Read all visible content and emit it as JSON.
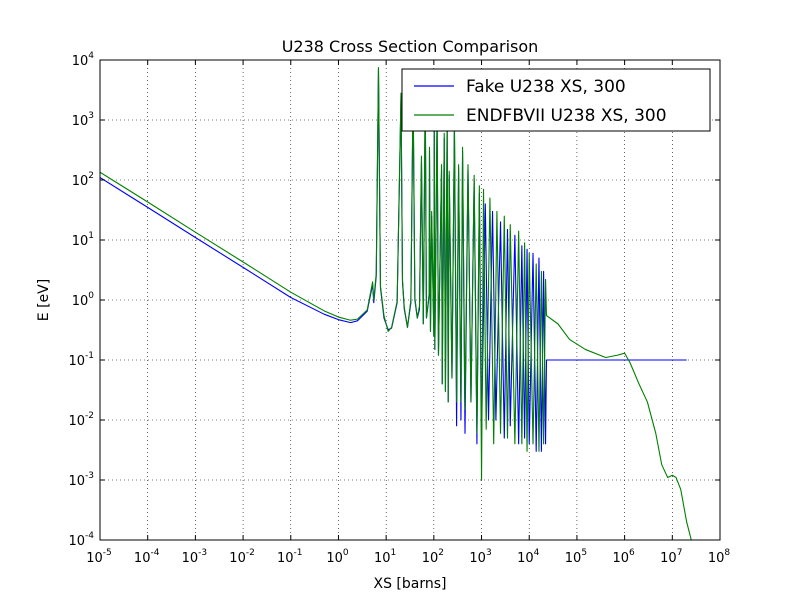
{
  "chart_data": {
    "type": "line",
    "title": "U238 Cross Section Comparison",
    "xlabel": "XS [barns]",
    "ylabel": "E [eV]",
    "x_scale": "log",
    "y_scale": "log",
    "xlim": [
      1e-05,
      100000000.0
    ],
    "ylim": [
      0.0001,
      10000.0
    ],
    "grid": true,
    "legend_position": "top-right",
    "x_ticks": [
      {
        "base": "10",
        "exp": "-5"
      },
      {
        "base": "10",
        "exp": "-4"
      },
      {
        "base": "10",
        "exp": "-3"
      },
      {
        "base": "10",
        "exp": "-2"
      },
      {
        "base": "10",
        "exp": "-1"
      },
      {
        "base": "10",
        "exp": "0"
      },
      {
        "base": "10",
        "exp": "1"
      },
      {
        "base": "10",
        "exp": "2"
      },
      {
        "base": "10",
        "exp": "3"
      },
      {
        "base": "10",
        "exp": "4"
      },
      {
        "base": "10",
        "exp": "5"
      },
      {
        "base": "10",
        "exp": "6"
      },
      {
        "base": "10",
        "exp": "7"
      },
      {
        "base": "10",
        "exp": "8"
      }
    ],
    "y_ticks": [
      {
        "base": "10",
        "exp": "-4"
      },
      {
        "base": "10",
        "exp": "-3"
      },
      {
        "base": "10",
        "exp": "-2"
      },
      {
        "base": "10",
        "exp": "-1"
      },
      {
        "base": "10",
        "exp": "0"
      },
      {
        "base": "10",
        "exp": "1"
      },
      {
        "base": "10",
        "exp": "2"
      },
      {
        "base": "10",
        "exp": "3"
      },
      {
        "base": "10",
        "exp": "4"
      }
    ],
    "series": [
      {
        "name": "Fake U238 XS, 300",
        "color": "#0000ff",
        "points": [
          [
            1e-05,
            110
          ],
          [
            0.0001,
            35
          ],
          [
            0.001,
            11
          ],
          [
            0.01,
            3.5
          ],
          [
            0.1,
            1.1
          ],
          [
            0.5,
            0.58
          ],
          [
            1,
            0.47
          ],
          [
            1.8,
            0.42
          ],
          [
            2.5,
            0.45
          ],
          [
            4,
            0.65
          ],
          [
            5.2,
            1.8
          ],
          [
            5.5,
            0.9
          ],
          [
            6.2,
            2.5
          ],
          [
            6.9,
            7000
          ],
          [
            7.6,
            1.6
          ],
          [
            9,
            0.5
          ],
          [
            11,
            0.32
          ],
          [
            13,
            0.34
          ],
          [
            17,
            0.9
          ],
          [
            20.5,
            2500
          ],
          [
            22,
            2.0
          ],
          [
            24,
            0.7
          ],
          [
            28,
            0.35
          ],
          [
            33,
            0.9
          ],
          [
            36.7,
            3000
          ],
          [
            40,
            1.0
          ],
          [
            45,
            0.5
          ],
          [
            50,
            0.7
          ],
          [
            55,
            200
          ],
          [
            60,
            0.4
          ],
          [
            66,
            2500
          ],
          [
            70,
            0.5
          ],
          [
            80,
            1.2
          ],
          [
            81,
            300
          ],
          [
            85,
            0.3
          ],
          [
            90,
            25
          ],
          [
            100,
            0.25
          ],
          [
            102,
            900
          ],
          [
            105,
            0.15
          ],
          [
            117,
            1200
          ],
          [
            125,
            0.12
          ],
          [
            145,
            150
          ],
          [
            150,
            0.04
          ],
          [
            165,
            500
          ],
          [
            175,
            0.03
          ],
          [
            190,
            1000
          ],
          [
            200,
            0.02
          ],
          [
            210,
            120
          ],
          [
            240,
            0.05
          ],
          [
            270,
            800
          ],
          [
            300,
            0.008
          ],
          [
            330,
            160
          ],
          [
            370,
            0.01
          ],
          [
            400,
            300
          ],
          [
            450,
            0.006
          ],
          [
            520,
            150
          ],
          [
            600,
            0.02
          ],
          [
            700,
            100
          ],
          [
            800,
            0.004
          ],
          [
            900,
            60
          ],
          [
            1000,
            0.006
          ],
          [
            1200,
            40
          ],
          [
            1400,
            0.01
          ],
          [
            1700,
            30
          ],
          [
            2000,
            0.01
          ],
          [
            2500,
            20
          ],
          [
            3000,
            0.005
          ],
          [
            3500,
            15
          ],
          [
            4000,
            0.008
          ],
          [
            5000,
            12
          ],
          [
            6000,
            0.004
          ],
          [
            7000,
            8
          ],
          [
            8000,
            0.005
          ],
          [
            9000,
            7
          ],
          [
            10000,
            0.004
          ],
          [
            12000,
            6
          ],
          [
            14000,
            0.003
          ],
          [
            16000,
            5
          ],
          [
            18000,
            0.003
          ],
          [
            20000,
            3
          ],
          [
            22000,
            0.004
          ],
          [
            23000,
            0.1
          ],
          [
            100000.0,
            0.1
          ],
          [
            1000000.0,
            0.1
          ],
          [
            10000000.0,
            0.1
          ],
          [
            20000000.0,
            0.1
          ]
        ]
      },
      {
        "name": "ENDFBVII U238 XS, 300",
        "color": "#008000",
        "points": [
          [
            1e-05,
            135
          ],
          [
            0.0001,
            43
          ],
          [
            0.001,
            13.5
          ],
          [
            0.01,
            4.3
          ],
          [
            0.1,
            1.35
          ],
          [
            0.5,
            0.66
          ],
          [
            1,
            0.52
          ],
          [
            1.8,
            0.46
          ],
          [
            2.5,
            0.48
          ],
          [
            4,
            0.68
          ],
          [
            5.2,
            2.0
          ],
          [
            5.5,
            1.0
          ],
          [
            6.2,
            2.8
          ],
          [
            6.9,
            7500
          ],
          [
            7.6,
            1.7
          ],
          [
            9,
            0.55
          ],
          [
            11,
            0.3
          ],
          [
            13,
            0.35
          ],
          [
            17,
            0.95
          ],
          [
            20.5,
            2800
          ],
          [
            22,
            2.2
          ],
          [
            24,
            0.75
          ],
          [
            28,
            0.35
          ],
          [
            33,
            1.0
          ],
          [
            36.7,
            3500
          ],
          [
            40,
            1.1
          ],
          [
            45,
            0.5
          ],
          [
            50,
            0.8
          ],
          [
            55,
            250
          ],
          [
            60,
            0.4
          ],
          [
            66,
            2800
          ],
          [
            70,
            0.5
          ],
          [
            80,
            1.3
          ],
          [
            81,
            350
          ],
          [
            85,
            0.3
          ],
          [
            90,
            30
          ],
          [
            100,
            0.25
          ],
          [
            102,
            1000
          ],
          [
            105,
            0.15
          ],
          [
            117,
            1400
          ],
          [
            125,
            0.12
          ],
          [
            145,
            180
          ],
          [
            150,
            0.04
          ],
          [
            165,
            600
          ],
          [
            175,
            0.03
          ],
          [
            190,
            1100
          ],
          [
            200,
            0.02
          ],
          [
            210,
            140
          ],
          [
            240,
            0.05
          ],
          [
            270,
            900
          ],
          [
            300,
            0.02
          ],
          [
            330,
            180
          ],
          [
            370,
            0.02
          ],
          [
            400,
            350
          ],
          [
            450,
            0.015
          ],
          [
            520,
            180
          ],
          [
            600,
            0.02
          ],
          [
            700,
            120
          ],
          [
            800,
            0.006
          ],
          [
            900,
            80
          ],
          [
            1000,
            0.001
          ],
          [
            1100,
            70
          ],
          [
            1250,
            0.007
          ],
          [
            1500,
            50
          ],
          [
            1800,
            0.004
          ],
          [
            2100,
            30
          ],
          [
            2500,
            0.006
          ],
          [
            3000,
            25
          ],
          [
            3500,
            0.005
          ],
          [
            4000,
            18
          ],
          [
            5000,
            0.004
          ],
          [
            6000,
            14
          ],
          [
            7000,
            0.004
          ],
          [
            8000,
            9
          ],
          [
            9000,
            0.003
          ],
          [
            10000,
            6
          ],
          [
            12000,
            0.004
          ],
          [
            14000,
            4
          ],
          [
            16000,
            0.003
          ],
          [
            18000,
            3
          ],
          [
            20000,
            0.004
          ],
          [
            22000,
            2.2
          ],
          [
            23000,
            0.55
          ],
          [
            40000,
            0.4
          ],
          [
            70000,
            0.22
          ],
          [
            150000,
            0.15
          ],
          [
            400000,
            0.11
          ],
          [
            700000,
            0.12
          ],
          [
            1000000.0,
            0.13
          ],
          [
            1300000.0,
            0.09
          ],
          [
            2000000.0,
            0.04
          ],
          [
            3000000.0,
            0.02
          ],
          [
            4500000.0,
            0.006
          ],
          [
            6000000.0,
            0.0018
          ],
          [
            8000000.0,
            0.0011
          ],
          [
            10000000.0,
            0.0012
          ],
          [
            12000000.0,
            0.0011
          ],
          [
            15000000.0,
            0.0007
          ],
          [
            20000000.0,
            0.0002
          ],
          [
            25000000.0,
            0.0001
          ]
        ]
      }
    ]
  }
}
